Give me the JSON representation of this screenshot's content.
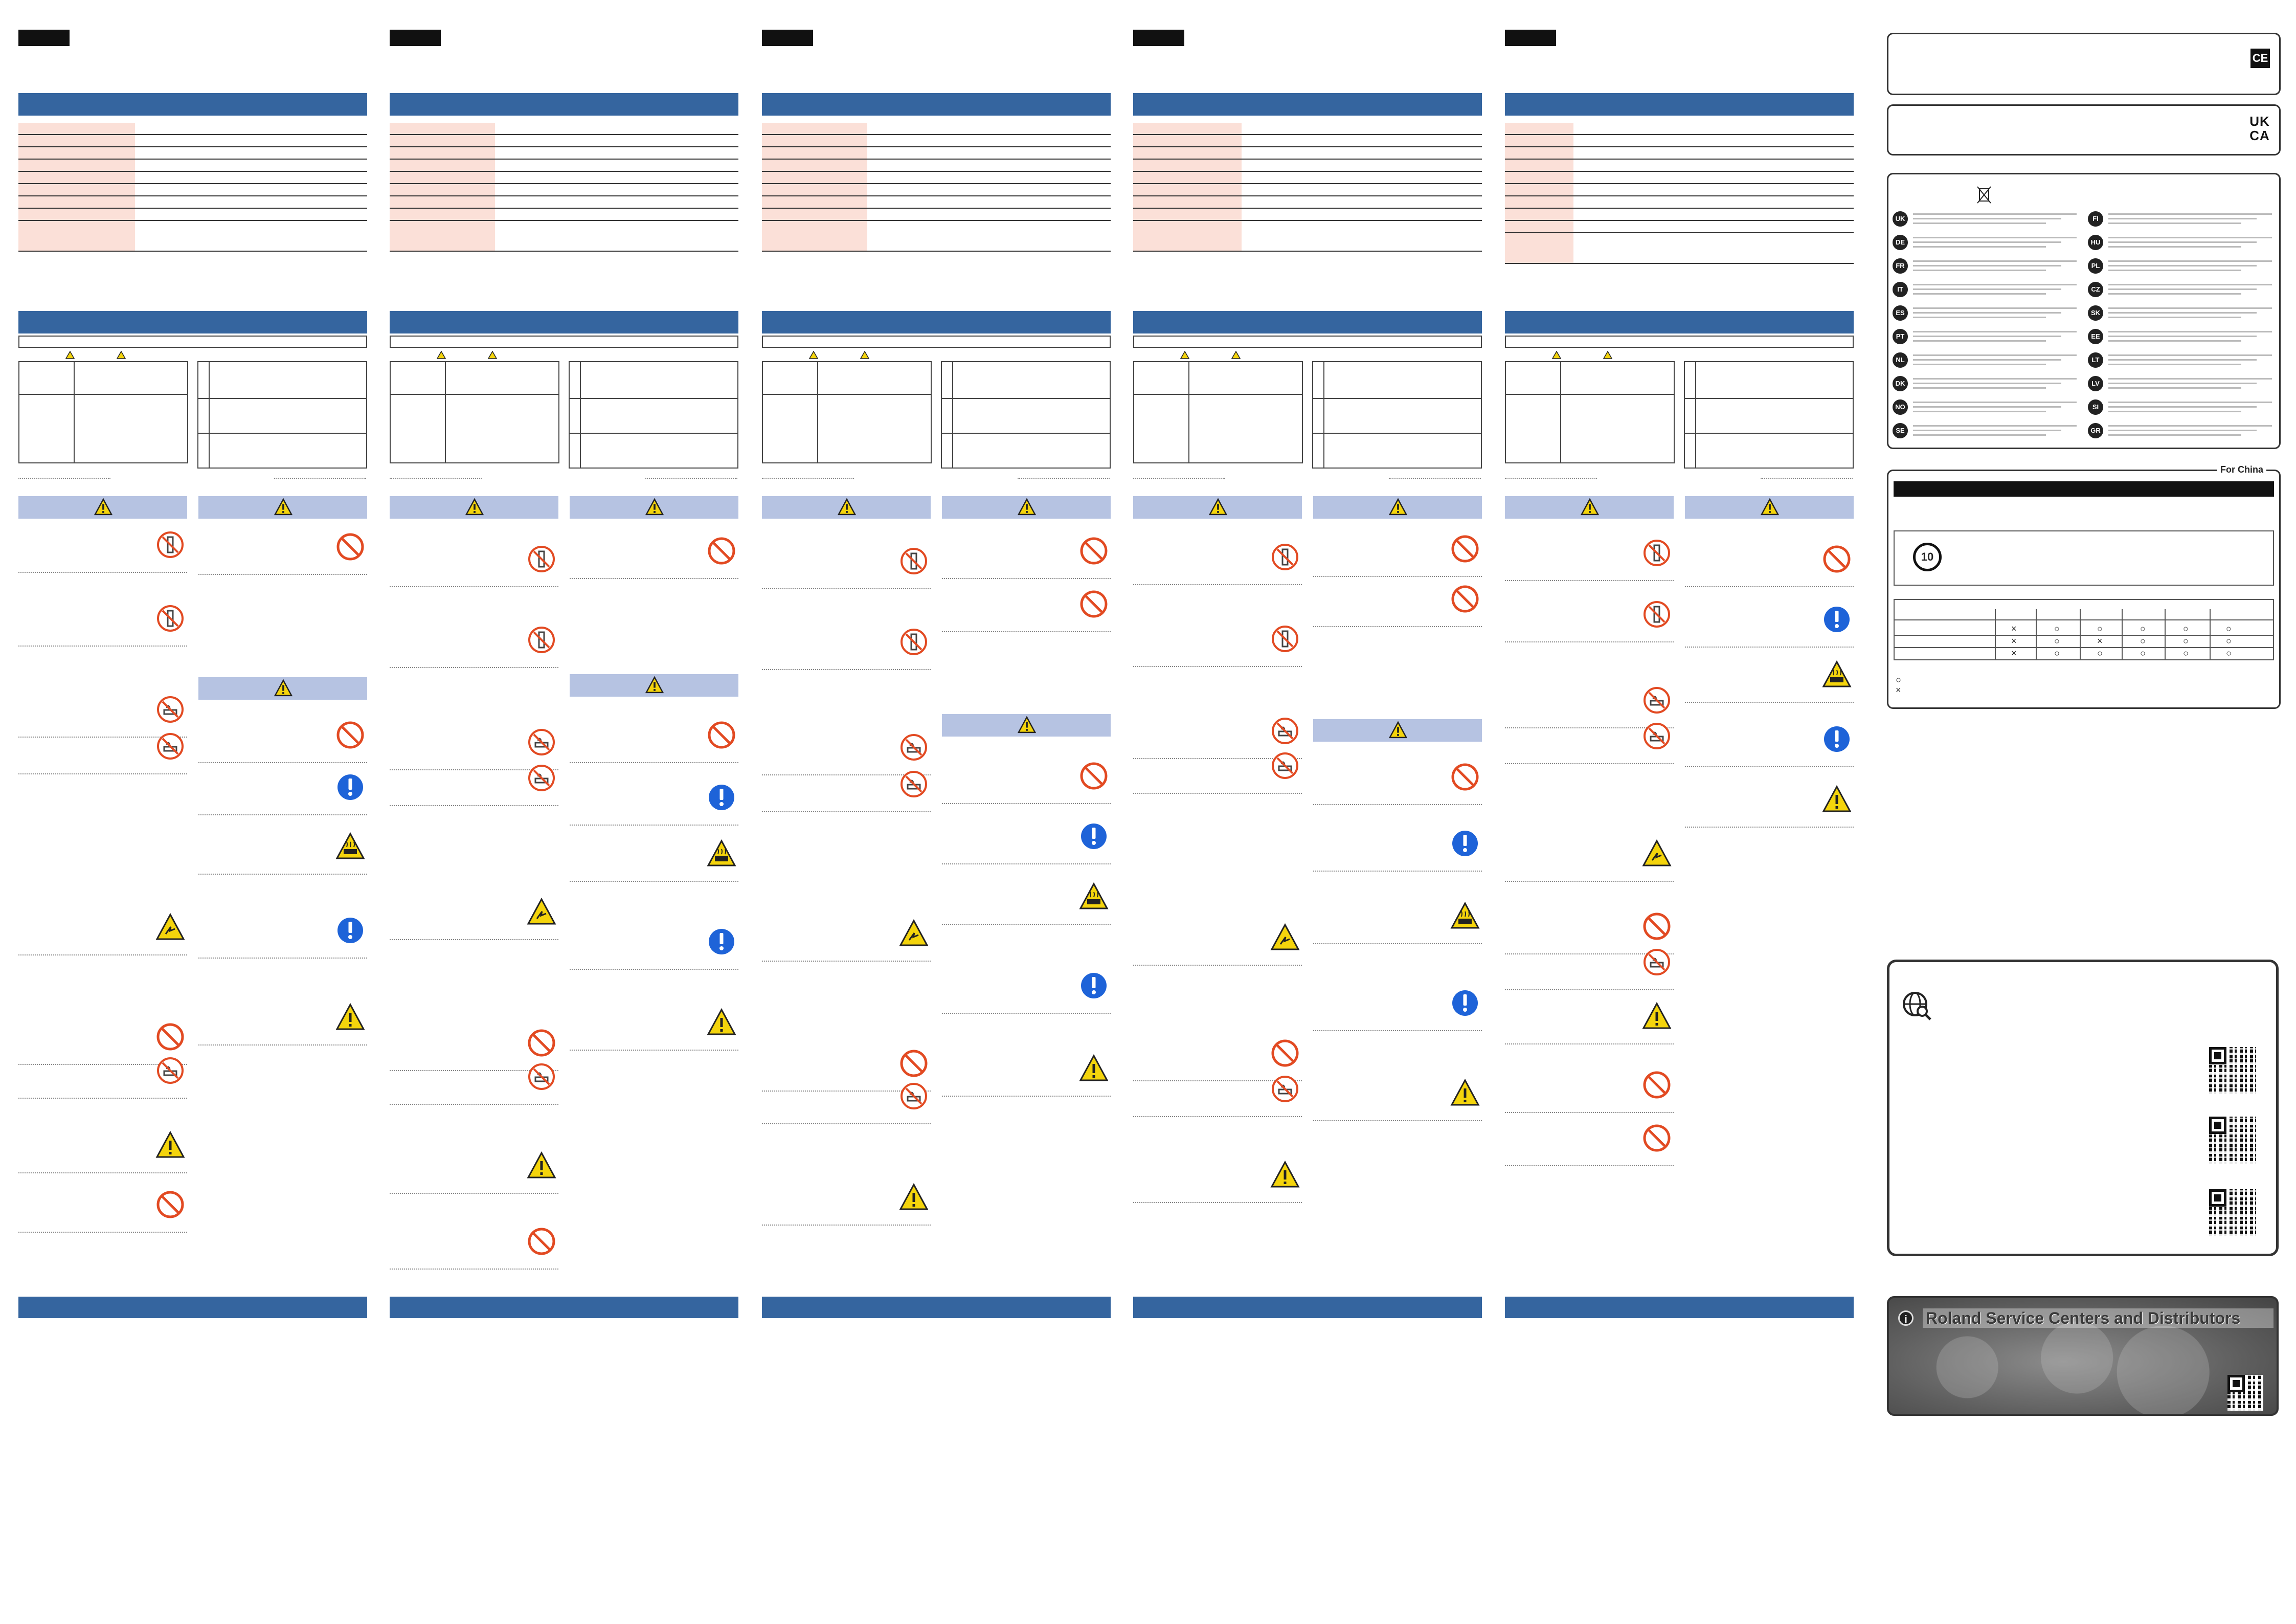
{
  "compliance": {
    "ce_mark": "CE",
    "ukca_mark": "UK CA"
  },
  "weee": {
    "language_codes": [
      "UK",
      "DE",
      "FR",
      "IT",
      "ES",
      "PT",
      "NL",
      "DK",
      "NO",
      "SE",
      "FI",
      "HU",
      "PL",
      "CZ",
      "SK",
      "EE",
      "LT",
      "LV",
      "SI",
      "GR"
    ]
  },
  "china": {
    "label": "For China",
    "epup_years": "10",
    "mark_x": "×",
    "mark_o": "○",
    "legend_o": "○",
    "legend_x": "×",
    "table_rows": [
      [
        "×",
        "○",
        "○",
        "○",
        "○",
        "○"
      ],
      [
        "×",
        "○",
        "×",
        "○",
        "○",
        "○"
      ],
      [
        "×",
        "○",
        "○",
        "○",
        "○",
        "○"
      ]
    ]
  },
  "service": {
    "title": "Roland Service Centers and Distributors"
  },
  "colors": {
    "primary_blue": "#35659f",
    "caution_blue": "#b6c3e2",
    "spec_pink": "#fbe0d8",
    "prohibit_red": "#e24a22",
    "mandatory_blue": "#1e63d8",
    "warning_yellow": "#f4d40c"
  },
  "icons": [
    "warning-triangle-icon",
    "prohibition-icon",
    "disassemble-prohibited-icon",
    "mandatory-action-icon",
    "hot-surface-icon",
    "water-prohibited-icon",
    "globe-search-icon",
    "info-icon",
    "ce-mark-icon",
    "crossed-bin-icon"
  ]
}
